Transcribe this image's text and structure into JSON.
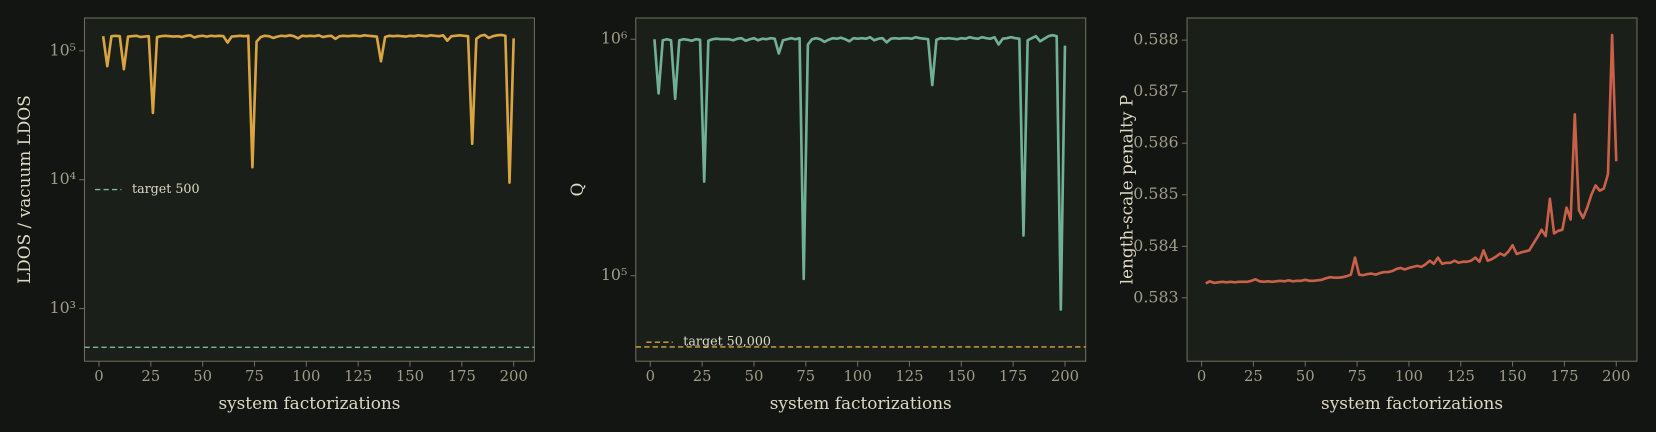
{
  "chart_data": [
    {
      "type": "line",
      "log_y": true,
      "xlabel": "system factorizations",
      "ylabel": "LDOS / vacuum LDOS",
      "xlim": [
        -7,
        210
      ],
      "xticks": [
        0,
        25,
        50,
        75,
        100,
        125,
        150,
        175,
        200
      ],
      "ylim": [
        390,
        180000
      ],
      "yticks": [
        {
          "value": 1000,
          "label": "10³"
        },
        {
          "value": 10000,
          "label": "10⁴"
        },
        {
          "value": 100000,
          "label": "10⁵"
        }
      ],
      "x": [
        2,
        4,
        6,
        8,
        10,
        12,
        14,
        16,
        18,
        20,
        22,
        24,
        26,
        28,
        30,
        32,
        34,
        36,
        38,
        40,
        42,
        44,
        46,
        48,
        50,
        52,
        54,
        56,
        58,
        60,
        62,
        64,
        66,
        68,
        70,
        72,
        74,
        76,
        78,
        80,
        82,
        84,
        86,
        88,
        90,
        92,
        94,
        96,
        98,
        100,
        102,
        104,
        106,
        108,
        110,
        112,
        114,
        116,
        118,
        120,
        122,
        124,
        126,
        128,
        130,
        132,
        134,
        136,
        138,
        140,
        142,
        144,
        146,
        148,
        150,
        152,
        154,
        156,
        158,
        160,
        162,
        164,
        166,
        168,
        170,
        172,
        174,
        176,
        178,
        180,
        182,
        184,
        186,
        188,
        190,
        192,
        194,
        196,
        198,
        200
      ],
      "series": [
        {
          "color": "#d9a441",
          "values": [
            130000,
            76000,
            130000,
            131000,
            130000,
            72000,
            129000,
            130000,
            131000,
            128000,
            129000,
            130000,
            33000,
            128000,
            130000,
            131000,
            130000,
            129000,
            130000,
            128000,
            131000,
            132000,
            127000,
            130000,
            131000,
            129000,
            131000,
            130000,
            131000,
            130000,
            116000,
            129000,
            130000,
            131000,
            130000,
            131000,
            12500,
            118000,
            128000,
            131000,
            130000,
            126000,
            129000,
            131000,
            130000,
            132000,
            130000,
            125000,
            131000,
            130000,
            131000,
            130000,
            132000,
            128000,
            130000,
            131000,
            124000,
            130000,
            131000,
            130000,
            131000,
            131000,
            130000,
            132000,
            131000,
            130000,
            129000,
            83000,
            128000,
            131000,
            130000,
            131000,
            130000,
            129000,
            131000,
            130000,
            132000,
            131000,
            130000,
            132000,
            131000,
            130000,
            132000,
            120000,
            130000,
            131000,
            132000,
            131000,
            130000,
            19000,
            124000,
            131000,
            133000,
            126000,
            130000,
            132000,
            133000,
            131000,
            9500,
            125000
          ]
        }
      ],
      "target": {
        "value": 500,
        "label": "target 500",
        "color": "#7fb59c",
        "legend": "center left"
      }
    },
    {
      "type": "line",
      "log_y": true,
      "xlabel": "system factorizations",
      "ylabel": "Q",
      "xlim": [
        -7,
        210
      ],
      "xticks": [
        0,
        25,
        50,
        75,
        100,
        125,
        150,
        175,
        200
      ],
      "ylim": [
        43500,
        1230000
      ],
      "yticks": [
        {
          "value": 100000,
          "label": "10⁵"
        },
        {
          "value": 1000000,
          "label": "10⁶"
        }
      ],
      "x": [
        2,
        4,
        6,
        8,
        10,
        12,
        14,
        16,
        18,
        20,
        22,
        24,
        26,
        28,
        30,
        32,
        34,
        36,
        38,
        40,
        42,
        44,
        46,
        48,
        50,
        52,
        54,
        56,
        58,
        60,
        62,
        64,
        66,
        68,
        70,
        72,
        74,
        76,
        78,
        80,
        82,
        84,
        86,
        88,
        90,
        92,
        94,
        96,
        98,
        100,
        102,
        104,
        106,
        108,
        110,
        112,
        114,
        116,
        118,
        120,
        122,
        124,
        126,
        128,
        130,
        132,
        134,
        136,
        138,
        140,
        142,
        144,
        146,
        148,
        150,
        152,
        154,
        156,
        158,
        160,
        162,
        164,
        166,
        168,
        170,
        172,
        174,
        176,
        178,
        180,
        182,
        184,
        186,
        188,
        190,
        192,
        194,
        196,
        198,
        200
      ],
      "series": [
        {
          "color": "#72b096",
          "values": [
            1000000,
            590000,
            990000,
            1000000,
            990000,
            560000,
            990000,
            1000000,
            995000,
            985000,
            1000000,
            995000,
            250000,
            985000,
            1000000,
            1005000,
            1000000,
            1000000,
            1000000,
            990000,
            1005000,
            1010000,
            985000,
            1000000,
            1010000,
            990000,
            1005000,
            1000000,
            1010000,
            1005000,
            870000,
            990000,
            1000000,
            1010000,
            1000000,
            1010000,
            97000,
            950000,
            1000000,
            1010000,
            1000000,
            975000,
            995000,
            1010000,
            1005000,
            1015000,
            1000000,
            980000,
            1010000,
            1005000,
            1010000,
            1005000,
            1020000,
            990000,
            1005000,
            1010000,
            970000,
            1005000,
            1010000,
            1005000,
            1010000,
            1010000,
            1005000,
            1020000,
            1010000,
            1005000,
            1000000,
            640000,
            995000,
            1010000,
            1005000,
            1010000,
            1005000,
            1000000,
            1010000,
            1005000,
            1020000,
            1010000,
            1005000,
            1020000,
            1010000,
            1005000,
            1020000,
            950000,
            1005000,
            1010000,
            1020000,
            1010000,
            1005000,
            148000,
            990000,
            1010000,
            1030000,
            980000,
            1005000,
            1030000,
            1040000,
            1030000,
            72000,
            940000
          ]
        }
      ],
      "target": {
        "value": 50000,
        "label": "target 50,000",
        "color": "#d9a441",
        "legend": "lower left"
      }
    },
    {
      "type": "line",
      "log_y": false,
      "xlabel": "system factorizations",
      "ylabel": "length-scale penalty P",
      "xlim": [
        -7,
        210
      ],
      "xticks": [
        0,
        25,
        50,
        75,
        100,
        125,
        150,
        175,
        200
      ],
      "ylim": [
        0.58177,
        0.58843
      ],
      "yticks": [
        0.583,
        0.584,
        0.585,
        0.586,
        0.587,
        0.588
      ],
      "x": [
        2,
        4,
        6,
        8,
        10,
        12,
        14,
        16,
        18,
        20,
        22,
        24,
        26,
        28,
        30,
        32,
        34,
        36,
        38,
        40,
        42,
        44,
        46,
        48,
        50,
        52,
        54,
        56,
        58,
        60,
        62,
        64,
        66,
        68,
        70,
        72,
        74,
        76,
        78,
        80,
        82,
        84,
        86,
        88,
        90,
        92,
        94,
        96,
        98,
        100,
        102,
        104,
        106,
        108,
        110,
        112,
        114,
        116,
        118,
        120,
        122,
        124,
        126,
        128,
        130,
        132,
        134,
        136,
        138,
        140,
        142,
        144,
        146,
        148,
        150,
        152,
        154,
        156,
        158,
        160,
        162,
        164,
        166,
        168,
        170,
        172,
        174,
        176,
        178,
        180,
        182,
        184,
        186,
        188,
        190,
        192,
        194,
        196,
        198,
        200
      ],
      "series": [
        {
          "color": "#c9604a",
          "values": [
            0.58328,
            0.58332,
            0.58329,
            0.5833,
            0.58331,
            0.5833,
            0.58331,
            0.5833,
            0.58331,
            0.58331,
            0.58331,
            0.58333,
            0.58336,
            0.58332,
            0.58331,
            0.58332,
            0.58331,
            0.58332,
            0.58333,
            0.58332,
            0.58334,
            0.58332,
            0.58333,
            0.58333,
            0.58335,
            0.58333,
            0.58333,
            0.58334,
            0.58335,
            0.58338,
            0.5834,
            0.58339,
            0.58339,
            0.5834,
            0.58342,
            0.58345,
            0.58378,
            0.58345,
            0.58344,
            0.58346,
            0.58347,
            0.58345,
            0.58348,
            0.5835,
            0.5835,
            0.58352,
            0.58356,
            0.58358,
            0.58355,
            0.58358,
            0.5836,
            0.58362,
            0.5836,
            0.58365,
            0.58372,
            0.58366,
            0.58378,
            0.58366,
            0.58368,
            0.58368,
            0.58372,
            0.58368,
            0.5837,
            0.5837,
            0.58372,
            0.58378,
            0.5837,
            0.58392,
            0.58372,
            0.58375,
            0.5838,
            0.58386,
            0.58382,
            0.5839,
            0.58402,
            0.58385,
            0.58388,
            0.5839,
            0.58392,
            0.58405,
            0.58418,
            0.58432,
            0.5842,
            0.58492,
            0.58425,
            0.5843,
            0.58432,
            0.58475,
            0.58452,
            0.58656,
            0.5847,
            0.58455,
            0.58475,
            0.585,
            0.58518,
            0.58508,
            0.58512,
            0.5854,
            0.5881,
            0.58565
          ]
        }
      ]
    }
  ]
}
